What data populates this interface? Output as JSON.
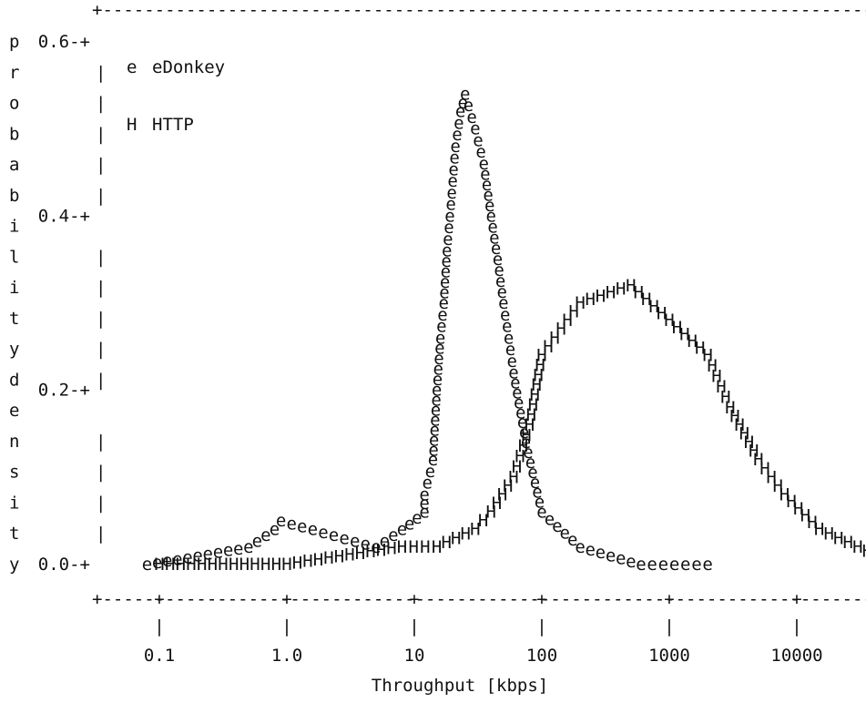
{
  "chart_data": {
    "type": "line",
    "style": "ascii-art",
    "xlabel": "Throughput [kbps]",
    "ylabel": "probability density",
    "x_scale": "log",
    "x_ticks": [
      "0.1",
      "1.0",
      "10",
      "100",
      "1000",
      "10000"
    ],
    "y_ticks": [
      "0.0",
      "0.2",
      "0.4",
      "0.6"
    ],
    "ylim": [
      0,
      0.6
    ],
    "legend_position": "top-left",
    "series": [
      {
        "name": "eDonkey",
        "marker": "e",
        "points": [
          [
            0.08,
            0.0
          ],
          [
            0.5,
            0.02
          ],
          [
            0.8,
            0.04
          ],
          [
            0.9,
            0.05
          ],
          [
            5,
            0.02
          ],
          [
            8,
            0.04
          ],
          [
            12,
            0.06
          ],
          [
            12,
            0.08
          ],
          [
            14,
            0.12
          ],
          [
            15,
            0.2
          ],
          [
            16,
            0.26
          ],
          [
            17,
            0.3
          ],
          [
            18,
            0.36
          ],
          [
            19,
            0.4
          ],
          [
            20,
            0.44
          ],
          [
            21,
            0.48
          ],
          [
            23,
            0.52
          ],
          [
            25,
            0.54
          ],
          [
            30,
            0.5
          ],
          [
            35,
            0.46
          ],
          [
            40,
            0.4
          ],
          [
            45,
            0.35
          ],
          [
            50,
            0.3
          ],
          [
            55,
            0.26
          ],
          [
            60,
            0.22
          ],
          [
            75,
            0.14
          ],
          [
            100,
            0.06
          ],
          [
            200,
            0.02
          ],
          [
            600,
            0.0
          ],
          [
            2000,
            0.0
          ]
        ]
      },
      {
        "name": "HTTP",
        "marker": "H",
        "points": [
          [
            0.1,
            0.0
          ],
          [
            1,
            0.0
          ],
          [
            8,
            0.02
          ],
          [
            15,
            0.02
          ],
          [
            30,
            0.04
          ],
          [
            40,
            0.06
          ],
          [
            60,
            0.1
          ],
          [
            80,
            0.16
          ],
          [
            100,
            0.24
          ],
          [
            200,
            0.3
          ],
          [
            500,
            0.32
          ],
          [
            1000,
            0.28
          ],
          [
            2000,
            0.24
          ],
          [
            3000,
            0.18
          ],
          [
            5000,
            0.12
          ],
          [
            8000,
            0.08
          ],
          [
            15000,
            0.04
          ],
          [
            30000,
            0.02
          ],
          [
            60000,
            0.0
          ]
        ]
      }
    ]
  }
}
